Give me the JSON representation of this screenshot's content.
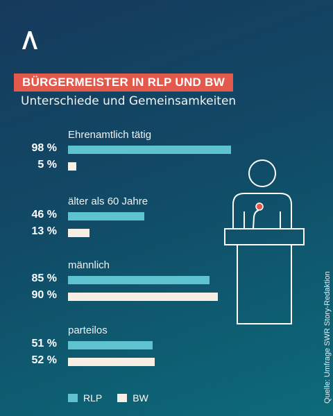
{
  "header": {
    "title": "BÜRGERMEISTER IN RLP UND BW",
    "subtitle": "Unterschiede und Gemeinsamkeiten"
  },
  "source": "Quelle: Umfrage SWR Story-Redaktion",
  "colors": {
    "rlp": "#5ec2cf",
    "bw": "#f7efe4",
    "accent": "#e35a4c"
  },
  "icons": {
    "logo": "swr-logo-icon",
    "illustration": "speaker-at-podium-icon"
  },
  "chart_data": {
    "type": "bar",
    "orientation": "horizontal",
    "title": "BÜRGERMEISTER IN RLP UND BW",
    "subtitle": "Unterschiede und Gemeinsamkeiten",
    "categories": [
      "Ehrenamtlich tätig",
      "älter als 60 Jahre",
      "männlich",
      "parteilos"
    ],
    "series": [
      {
        "name": "RLP",
        "values": [
          98,
          46,
          85,
          51
        ],
        "labels": [
          "98 %",
          "46 %",
          "85 %",
          "51 %"
        ]
      },
      {
        "name": "BW",
        "values": [
          5,
          13,
          90,
          52
        ],
        "labels": [
          "5 %",
          "13 %",
          "90 %",
          "52 %"
        ]
      }
    ],
    "unit": "%",
    "xlim": [
      0,
      100
    ],
    "grid": false,
    "legend_position": "bottom-left"
  }
}
